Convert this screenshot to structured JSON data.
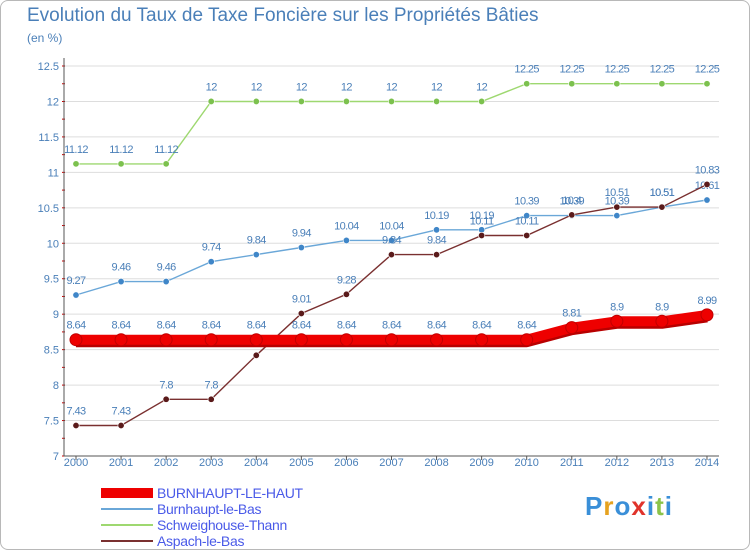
{
  "header": {
    "title": "Evolution du Taux de Taxe Foncière sur les Propriétés Bâties",
    "unit": "(en %)"
  },
  "logo": {
    "text": "Proxiti",
    "colors": [
      "#3a8fd8",
      "#e6a21f",
      "#3a8fd8",
      "#e0332b",
      "#3a8fd8",
      "#8bc34a",
      "#3a8fd8"
    ]
  },
  "colors": {
    "text": "#4a7fb8",
    "grid": "#dddddd",
    "axis": "#555555",
    "tick_accent": "#cc0000"
  },
  "chart_data": {
    "type": "line",
    "title": "Evolution du Taux de Taxe Foncière sur les Propriétés Bâties",
    "ylabel": "(en %)",
    "xlabel": "",
    "x": [
      2000,
      2001,
      2002,
      2003,
      2004,
      2005,
      2006,
      2007,
      2008,
      2009,
      2010,
      2011,
      2012,
      2013,
      2014
    ],
    "ylim": [
      7,
      12.5
    ],
    "yticks": [
      7,
      7.5,
      8,
      8.5,
      9,
      9.5,
      10,
      10.5,
      11,
      11.5,
      12,
      12.5
    ],
    "ytick_labels": [
      "7",
      "7.5",
      "8",
      "8.5",
      "9",
      "9.5",
      "10",
      "10.5",
      "11",
      "11.5",
      "12",
      "12.5"
    ],
    "grid": "horizontal",
    "legend_position": "bottom-left",
    "series": [
      {
        "name": "BURNHAUPT-LE-HAUT",
        "color": "#ee0000",
        "marker_color": "#ee0000",
        "emphasis": true,
        "values": [
          8.64,
          8.64,
          8.64,
          8.64,
          8.64,
          8.64,
          8.64,
          8.64,
          8.64,
          8.64,
          8.64,
          8.81,
          8.9,
          8.9,
          8.99
        ],
        "labels": [
          "8.64",
          "8.64",
          "8.64",
          "8.64",
          "8.64",
          "8.64",
          "8.64",
          "8.64",
          "8.64",
          "8.64",
          "8.64",
          "8.81",
          "8.9",
          "8.9",
          "8.99"
        ]
      },
      {
        "name": "Burnhaupt-le-Bas",
        "color": "#6aa7d8",
        "marker_color": "#3f86c8",
        "emphasis": false,
        "values": [
          9.27,
          9.46,
          9.46,
          9.74,
          9.84,
          9.94,
          10.04,
          10.04,
          10.19,
          10.19,
          10.39,
          10.39,
          10.39,
          10.51,
          10.61
        ],
        "labels": [
          "9.27",
          "9.46",
          "9.46",
          "9.74",
          "9.84",
          "9.94",
          "10.04",
          "10.04",
          "10.19",
          "10.19",
          "10.39",
          "10.39",
          "10.39",
          "10.51",
          "10.61"
        ]
      },
      {
        "name": "Schweighouse-Thann",
        "color": "#9ed870",
        "marker_color": "#7cc14e",
        "emphasis": false,
        "values": [
          11.12,
          11.12,
          11.12,
          12,
          12,
          12,
          12,
          12,
          12,
          12,
          12.25,
          12.25,
          12.25,
          12.25,
          12.25
        ],
        "labels": [
          "11.12",
          "11.12",
          "11.12",
          "12",
          "12",
          "12",
          "12",
          "12",
          "12",
          "12",
          "12.25",
          "12.25",
          "12.25",
          "12.25",
          "12.25"
        ]
      },
      {
        "name": "Aspach-le-Bas",
        "color": "#7a3030",
        "marker_color": "#5a1a1a",
        "emphasis": false,
        "values": [
          7.43,
          7.43,
          7.8,
          7.8,
          8.42,
          9.01,
          9.28,
          9.84,
          9.84,
          10.11,
          10.11,
          10.4,
          10.51,
          10.51,
          10.83
        ],
        "labels": [
          "7.43",
          "7.43",
          "7.8",
          "7.8",
          "8.42",
          "9.01",
          "9.28",
          "9.84",
          "9.84",
          "10.11",
          "10.11",
          "10.4",
          "10.51",
          "10.51",
          "10.83"
        ]
      }
    ]
  }
}
